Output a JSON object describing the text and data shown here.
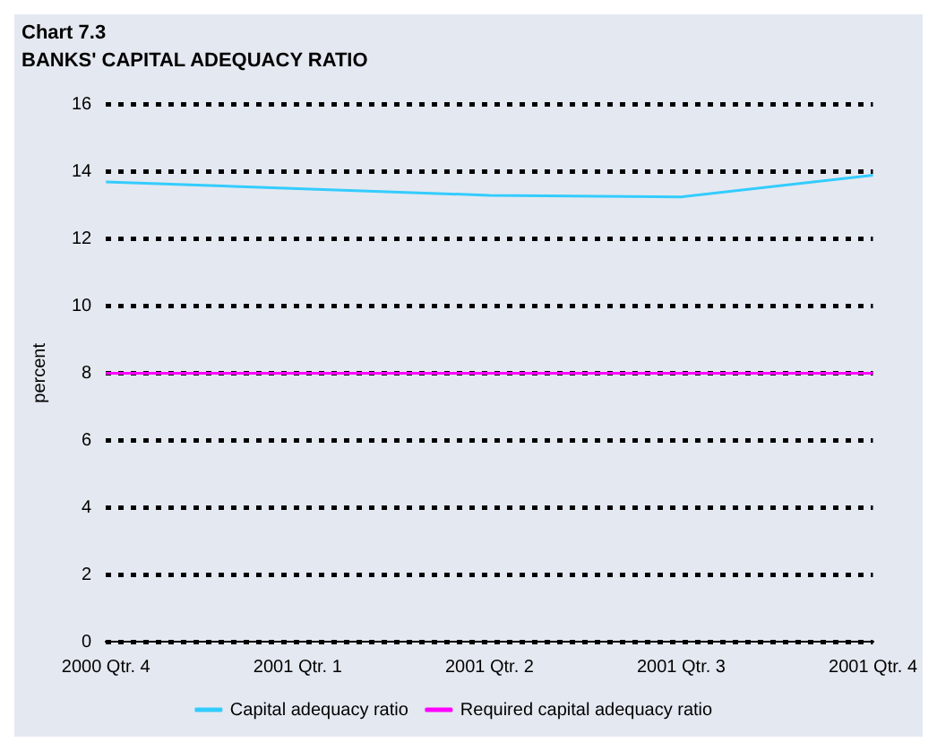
{
  "chart_data": {
    "type": "line",
    "title": "Chart 7.3",
    "subtitle": "BANKS' CAPITAL ADEQUACY RATIO",
    "ylabel": "percent",
    "categories": [
      "2000 Qtr. 4",
      "2001 Qtr. 1",
      "2001 Qtr. 2",
      "2001 Qtr. 3",
      "2001 Qtr. 4"
    ],
    "series": [
      {
        "name": "Capital adequacy ratio",
        "color": "#33ccff",
        "values": [
          13.7,
          13.5,
          13.3,
          13.25,
          13.9
        ]
      },
      {
        "name": "Required capital adequacy ratio",
        "color": "#ff00ff",
        "values": [
          8,
          8,
          8,
          8,
          8
        ]
      }
    ],
    "ylim": [
      0,
      16
    ],
    "yticks": [
      0,
      2,
      4,
      6,
      8,
      10,
      12,
      14,
      16
    ],
    "grid": "y",
    "legend": "bottom",
    "marker": "none",
    "line_style": "solid"
  }
}
